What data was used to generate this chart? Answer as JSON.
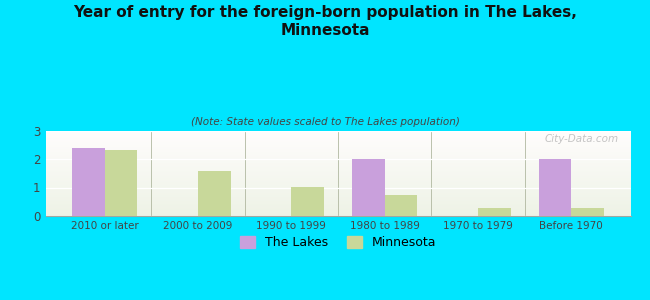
{
  "title": "Year of entry for the foreign-born population in The Lakes,\nMinnesota",
  "subtitle": "(Note: State values scaled to The Lakes population)",
  "categories": [
    "2010 or later",
    "2000 to 2009",
    "1990 to 1999",
    "1980 to 1989",
    "1970 to 1979",
    "Before 1970"
  ],
  "the_lakes": [
    2.4,
    0,
    0,
    2.0,
    0,
    2.0
  ],
  "minnesota": [
    2.3,
    1.58,
    1.02,
    0.72,
    0.28,
    0.28
  ],
  "lakes_color": "#c9a0dc",
  "minnesota_color": "#c8d89a",
  "background_color": "#00e5ff",
  "ylim": [
    0,
    3
  ],
  "yticks": [
    0,
    1,
    2,
    3
  ],
  "bar_width": 0.35,
  "legend_labels": [
    "The Lakes",
    "Minnesota"
  ],
  "watermark": "City-Data.com"
}
